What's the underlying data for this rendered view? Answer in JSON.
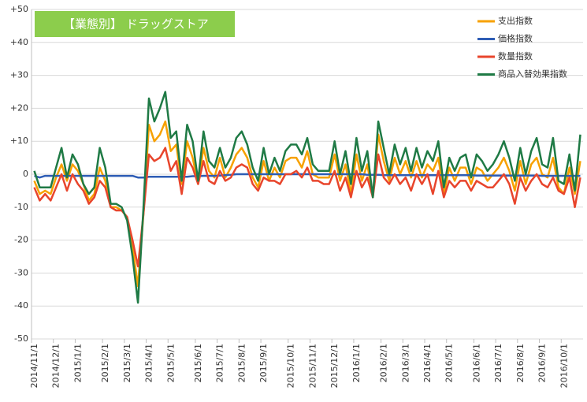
{
  "chart_data": {
    "type": "line",
    "title": "【業態別】 ドラッグストア",
    "categories": [
      "2014/11/1",
      null,
      null,
      null,
      "2014/12/1",
      null,
      null,
      null,
      "2015/1/1",
      null,
      null,
      null,
      null,
      "2015/2/1",
      null,
      null,
      null,
      "2015/3/1",
      null,
      null,
      null,
      "2015/4/1",
      null,
      null,
      null,
      "2015/5/1",
      null,
      null,
      null,
      null,
      "2015/6/1",
      null,
      null,
      null,
      "2015/7/1",
      null,
      null,
      null,
      "2015/8/1",
      null,
      null,
      null,
      "2015/9/1",
      null,
      null,
      null,
      null,
      "2015/10/1",
      null,
      null,
      null,
      "2015/11/1",
      null,
      null,
      null,
      "2015/12/1",
      null,
      null,
      null,
      "2016/1/1",
      null,
      null,
      null,
      null,
      "2016/2/1",
      null,
      null,
      null,
      "2016/3/1",
      null,
      null,
      null,
      "2016/4/1",
      null,
      null,
      null,
      "2016/5/1",
      null,
      null,
      null,
      null,
      "2016/6/1",
      null,
      null,
      null,
      "2016/7/1",
      null,
      null,
      null,
      "2016/8/1",
      null,
      null,
      null,
      "2016/9/1",
      null,
      null,
      null,
      "2016/10/1",
      null,
      null,
      null
    ],
    "series": [
      {
        "name": "支出指数",
        "color": "#f7a100",
        "values": [
          -2,
          -6,
          -5,
          -6,
          -1,
          3,
          -2,
          3,
          1,
          -3,
          -8,
          -6,
          2,
          -2,
          -10,
          -10,
          -11,
          -13,
          -22,
          -34,
          -12,
          15,
          10,
          12,
          16,
          7,
          9,
          -3,
          10,
          5,
          -3,
          8,
          1,
          -1,
          5,
          -1,
          2,
          6,
          8,
          5,
          -1,
          -4,
          4,
          -2,
          2,
          -1,
          4,
          5,
          5,
          2,
          7,
          0,
          -1,
          -1,
          -1,
          6,
          -2,
          3,
          -6,
          6,
          -2,
          3,
          -7,
          12,
          4,
          -2,
          5,
          0,
          4,
          -1,
          4,
          -1,
          3,
          1,
          5,
          -6,
          2,
          -2,
          2,
          2,
          -3,
          2,
          1,
          -2,
          0,
          2,
          5,
          1,
          -5,
          4,
          -3,
          3,
          5,
          0,
          -1,
          5,
          -4,
          -6,
          2,
          -6,
          4
        ]
      },
      {
        "name": "価格指数",
        "color": "#2e5db5",
        "values": [
          -0.5,
          -1,
          -0.5,
          -0.5,
          -0.5,
          -0.5,
          -0.5,
          -0.5,
          -0.5,
          -0.5,
          -0.5,
          -0.5,
          -0.5,
          -0.5,
          -0.5,
          -0.5,
          -0.5,
          -0.5,
          -0.5,
          -1,
          -1,
          -0.8,
          -0.8,
          -0.8,
          -0.8,
          -0.8,
          -0.8,
          -0.8,
          -0.8,
          -0.6,
          -0.6,
          -0.5,
          -0.5,
          -0.5,
          -0.4,
          -0.3,
          -0.2,
          0,
          0,
          0,
          0,
          0,
          0,
          0,
          0,
          0,
          0,
          0,
          0,
          0,
          0,
          0,
          0,
          0,
          0,
          0,
          0,
          0,
          0,
          0,
          0,
          -0.2,
          -0.2,
          -0.2,
          -0.3,
          -0.3,
          -0.3,
          -0.3,
          -0.3,
          -0.3,
          -0.3,
          -0.3,
          -0.3,
          -0.3,
          -0.3,
          -0.3,
          -0.3,
          -0.3,
          -0.3,
          -0.3,
          -0.3,
          -0.4,
          -0.4,
          -0.4,
          -0.4,
          -0.4,
          -0.4,
          -0.4,
          -0.4,
          -0.4,
          -0.4,
          -0.4,
          -0.4,
          -0.5,
          -0.5,
          -0.5,
          -0.5,
          -0.5,
          -0.5,
          -0.5,
          -0.5
        ]
      },
      {
        "name": "数量指数",
        "color": "#e8452c",
        "values": [
          -4,
          -8,
          -6,
          -8,
          -4,
          0,
          -5,
          0,
          -3,
          -5,
          -9,
          -7,
          -2,
          -4,
          -10,
          -11,
          -11,
          -13,
          -20,
          -28,
          -12,
          6,
          4,
          5,
          8,
          1,
          4,
          -6,
          5,
          2,
          -3,
          4,
          -2,
          -3,
          1,
          -2,
          -1,
          2,
          3,
          2,
          -3,
          -5,
          -1,
          -2,
          -2,
          -3,
          0,
          0,
          1,
          -1,
          2,
          -2,
          -2,
          -3,
          -3,
          1,
          -5,
          -1,
          -7,
          1,
          -4,
          -1,
          -7,
          6,
          -1,
          -3,
          0,
          -3,
          -1,
          -5,
          0,
          -3,
          0,
          -6,
          1,
          -7,
          -2,
          -4,
          -2,
          -2,
          -5,
          -2,
          -3,
          -4,
          -4,
          -2,
          0,
          -3,
          -9,
          -1,
          -5,
          -2,
          0,
          -3,
          -4,
          -1,
          -5,
          -6,
          -1,
          -10,
          -1
        ]
      },
      {
        "name": "商品入替効果指数",
        "color": "#1f7a45",
        "values": [
          1,
          -4,
          -4,
          -4,
          2,
          8,
          -1,
          6,
          3,
          -3,
          -6,
          -4,
          8,
          2,
          -9,
          -9,
          -10,
          -14,
          -25,
          -39,
          -10,
          23,
          16,
          20,
          25,
          11,
          13,
          -2,
          15,
          10,
          -2,
          13,
          4,
          2,
          8,
          2,
          5,
          11,
          13,
          9,
          2,
          -2,
          8,
          0,
          5,
          1,
          7,
          9,
          9,
          6,
          11,
          3,
          1,
          1,
          1,
          10,
          0,
          7,
          -3,
          11,
          1,
          7,
          -7,
          16,
          8,
          0,
          9,
          3,
          8,
          1,
          8,
          2,
          7,
          4,
          10,
          -4,
          5,
          1,
          5,
          6,
          -1,
          6,
          4,
          1,
          3,
          6,
          10,
          5,
          -2,
          8,
          0,
          7,
          11,
          3,
          2,
          11,
          -2,
          -3,
          6,
          -5,
          12
        ]
      }
    ],
    "ylim": [
      -50,
      50
    ],
    "yticks": [
      {
        "value": -50,
        "label": "-50"
      },
      -40,
      -30,
      -20,
      -10,
      0,
      {
        "value": 10,
        "label": "+10"
      },
      {
        "value": 20,
        "label": "+20"
      },
      {
        "value": 30,
        "label": "+30"
      },
      {
        "value": 40,
        "label": "+40"
      },
      {
        "value": 50,
        "label": "+50"
      }
    ],
    "grid": true,
    "legend": "top-right"
  }
}
